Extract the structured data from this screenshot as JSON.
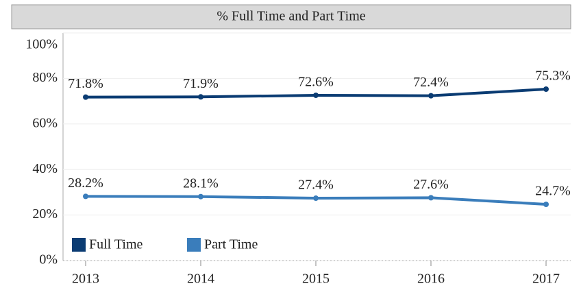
{
  "chart_data": {
    "type": "line",
    "title": "% Full Time and Part Time",
    "categories": [
      "2013",
      "2014",
      "2015",
      "2016",
      "2017"
    ],
    "series": [
      {
        "name": "Full Time",
        "color": "#0b3c73",
        "values": [
          71.8,
          71.9,
          72.6,
          72.4,
          75.3
        ],
        "value_labels": [
          "71.8%",
          "71.9%",
          "72.6%",
          "72.4%",
          "75.3%"
        ]
      },
      {
        "name": "Part Time",
        "color": "#3a7dbb",
        "values": [
          28.2,
          28.1,
          27.4,
          27.6,
          24.7
        ],
        "value_labels": [
          "28.2%",
          "28.1%",
          "27.4%",
          "27.6%",
          "24.7%"
        ]
      }
    ],
    "ylim": [
      0,
      100
    ],
    "yticks": [
      {
        "value": 0,
        "label": "0%"
      },
      {
        "value": 20,
        "label": "20%"
      },
      {
        "value": 40,
        "label": "40%"
      },
      {
        "value": 60,
        "label": "60%"
      },
      {
        "value": 80,
        "label": "80%"
      },
      {
        "value": 100,
        "label": "100%"
      }
    ],
    "grid": true,
    "legend": "bottom-left"
  }
}
